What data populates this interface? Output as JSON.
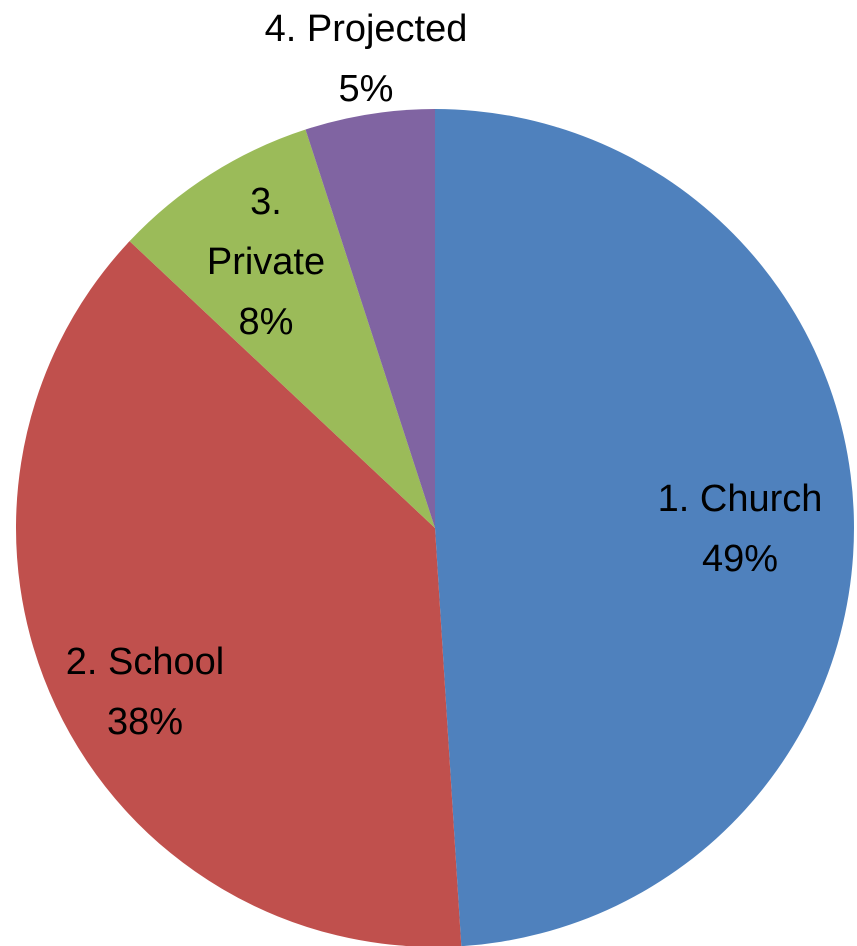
{
  "chart_data": {
    "type": "pie",
    "title": "",
    "slices": [
      {
        "label": "1. Church",
        "value": 49,
        "percent_label": "49%",
        "color": "#4F81BD"
      },
      {
        "label": "2. School",
        "value": 38,
        "percent_label": "38%",
        "color": "#C0504D"
      },
      {
        "label": "3. Private",
        "value": 8,
        "percent_label": "8%",
        "color": "#9BBB59"
      },
      {
        "label": "4. Projected",
        "value": 5,
        "percent_label": "5%",
        "color": "#8064A2"
      }
    ],
    "start_angle": "12 o'clock",
    "direction": "clockwise",
    "legend": "none"
  }
}
